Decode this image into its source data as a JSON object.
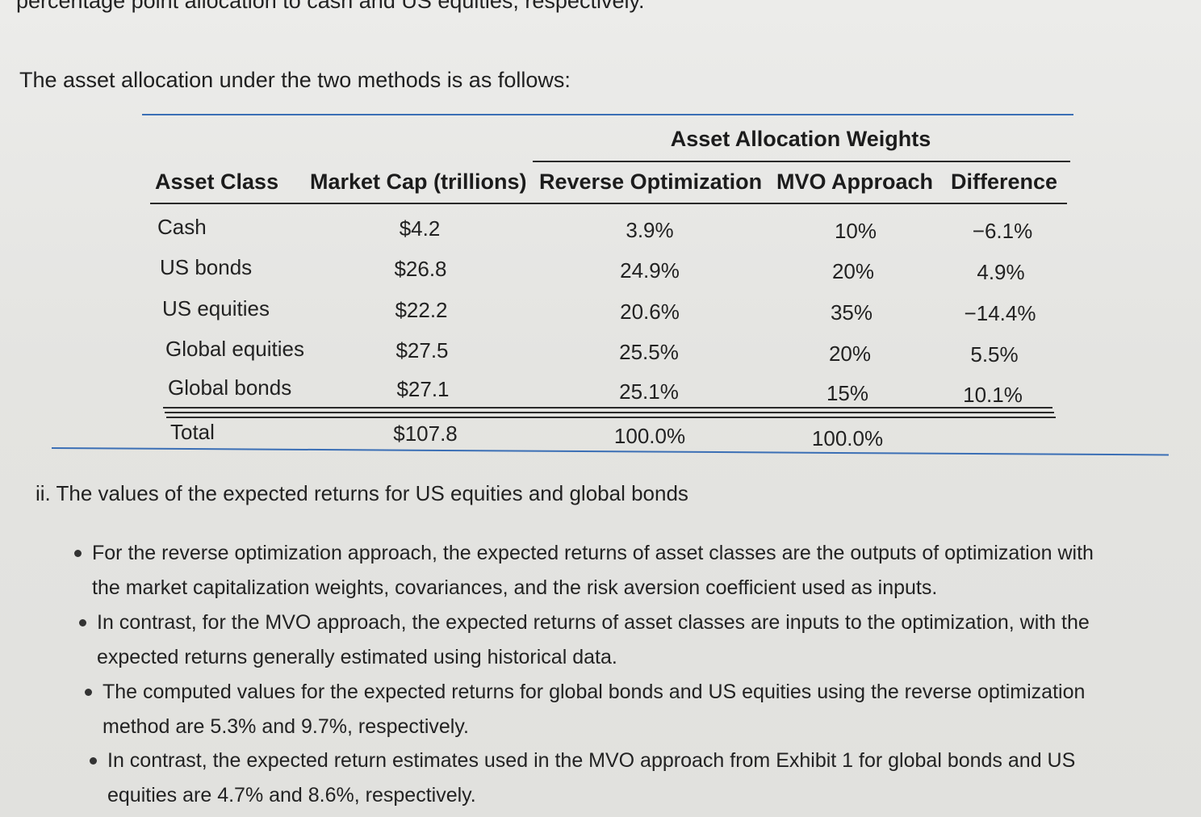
{
  "top_clipped_text": "percentage point allocation to cash and US equities, respectively.",
  "intro_text": "The asset allocation under the two methods is as follows:",
  "table": {
    "group_header": "Asset Allocation Weights",
    "columns": [
      "Asset Class",
      "Market Cap (trillions)",
      "Reverse Optimization",
      "MVO Approach",
      "Difference"
    ],
    "rows": [
      {
        "asset_class": "Cash",
        "market_cap": "$4.2",
        "reverse_opt": "3.9%",
        "mvo": "10%",
        "difference": "−6.1%"
      },
      {
        "asset_class": "US bonds",
        "market_cap": "$26.8",
        "reverse_opt": "24.9%",
        "mvo": "20%",
        "difference": "4.9%"
      },
      {
        "asset_class": "US equities",
        "market_cap": "$22.2",
        "reverse_opt": "20.6%",
        "mvo": "35%",
        "difference": "−14.4%"
      },
      {
        "asset_class": "Global equities",
        "market_cap": "$27.5",
        "reverse_opt": "25.5%",
        "mvo": "20%",
        "difference": "5.5%"
      },
      {
        "asset_class": "Global bonds",
        "market_cap": "$27.1",
        "reverse_opt": "25.1%",
        "mvo": "15%",
        "difference": "10.1%"
      }
    ],
    "total": {
      "label": "Total",
      "market_cap": "$107.8",
      "reverse_opt": "100.0%",
      "mvo": "100.0%"
    }
  },
  "section_heading": "ii. The values of the expected returns for US equities and global bonds",
  "bullets": [
    {
      "line1": "For the reverse optimization approach, the expected returns of asset classes are the outputs of optimization with",
      "line2": "the market capitalization weights, covariances, and the risk aversion coefficient used as inputs."
    },
    {
      "line1": "In contrast, for the MVO approach, the expected returns of asset classes are inputs to the optimization, with the",
      "line2": "expected returns generally estimated using historical data."
    },
    {
      "line1": "The computed values for the expected returns for global bonds and US equities using the reverse optimization",
      "line2": "method are 5.3% and 9.7%, respectively."
    },
    {
      "line1": "In contrast, the expected return estimates used in the MVO approach from Exhibit 1 for global bonds and US",
      "line2": "equities are 4.7% and 8.6%, respectively."
    }
  ]
}
